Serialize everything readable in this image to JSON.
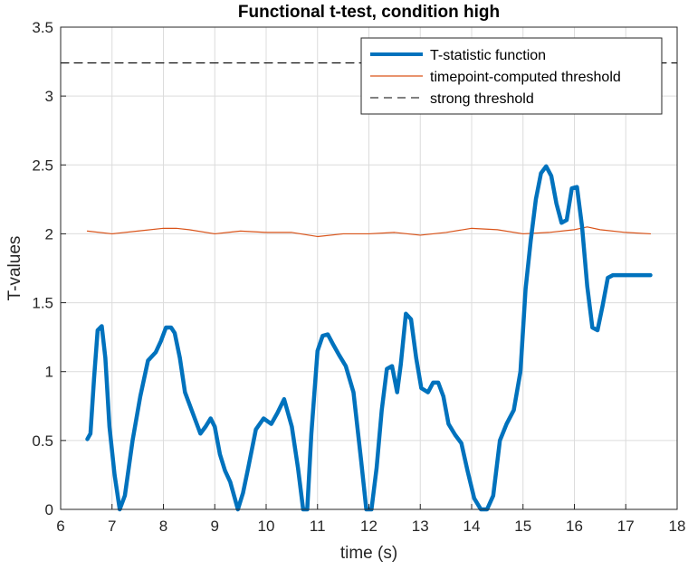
{
  "chart_data": {
    "type": "line",
    "title": "Functional t-test, condition high",
    "xlabel": "time (s)",
    "ylabel": "T-values",
    "xlim": [
      6,
      18
    ],
    "ylim": [
      0,
      3.5
    ],
    "xticks": [
      6,
      7,
      8,
      9,
      10,
      11,
      12,
      13,
      14,
      15,
      16,
      17,
      18
    ],
    "yticks": [
      0,
      0.5,
      1,
      1.5,
      2,
      2.5,
      3,
      3.5
    ],
    "xtick_labels": [
      "6",
      "7",
      "8",
      "9",
      "10",
      "11",
      "12",
      "13",
      "14",
      "15",
      "16",
      "17",
      "18"
    ],
    "ytick_labels": [
      "0",
      "0.5",
      "1",
      "1.5",
      "2",
      "2.5",
      "3",
      "3.5"
    ],
    "grid": true,
    "legend_position": "top-right",
    "series": [
      {
        "name": "T-statistic function",
        "color": "#0072BD",
        "style": "solid-thick",
        "x": [
          6.52,
          6.58,
          6.65,
          6.72,
          6.8,
          6.87,
          6.95,
          7.05,
          7.15,
          7.25,
          7.4,
          7.55,
          7.7,
          7.85,
          7.95,
          8.05,
          8.15,
          8.22,
          8.32,
          8.42,
          8.52,
          8.62,
          8.72,
          8.82,
          8.92,
          9.0,
          9.1,
          9.2,
          9.3,
          9.45,
          9.55,
          9.65,
          9.8,
          9.95,
          10.1,
          10.22,
          10.35,
          10.5,
          10.62,
          10.72,
          10.8,
          10.88,
          10.95,
          11.0,
          11.1,
          11.2,
          11.3,
          11.42,
          11.55,
          11.7,
          11.85,
          11.95,
          12.05,
          12.15,
          12.25,
          12.35,
          12.45,
          12.55,
          12.62,
          12.72,
          12.82,
          12.92,
          13.02,
          13.15,
          13.25,
          13.35,
          13.45,
          13.55,
          13.68,
          13.8,
          13.92,
          14.05,
          14.18,
          14.3,
          14.42,
          14.55,
          14.68,
          14.82,
          14.95,
          15.05,
          15.15,
          15.25,
          15.35,
          15.45,
          15.55,
          15.65,
          15.75,
          15.85,
          15.95,
          16.05,
          16.15,
          16.25,
          16.35,
          16.45,
          16.55,
          16.65,
          16.75,
          16.85,
          16.95,
          17.05,
          17.15,
          17.25,
          17.35,
          17.48
        ],
        "y": [
          0.51,
          0.55,
          0.95,
          1.3,
          1.33,
          1.1,
          0.6,
          0.25,
          0.0,
          0.1,
          0.5,
          0.82,
          1.08,
          1.14,
          1.22,
          1.32,
          1.32,
          1.28,
          1.1,
          0.85,
          0.75,
          0.65,
          0.55,
          0.6,
          0.66,
          0.6,
          0.4,
          0.28,
          0.2,
          0.0,
          0.12,
          0.3,
          0.58,
          0.66,
          0.62,
          0.7,
          0.8,
          0.6,
          0.3,
          0.0,
          0.0,
          0.55,
          0.9,
          1.15,
          1.26,
          1.27,
          1.2,
          1.12,
          1.04,
          0.85,
          0.35,
          0.0,
          0.0,
          0.3,
          0.72,
          1.02,
          1.04,
          0.85,
          1.05,
          1.42,
          1.38,
          1.1,
          0.88,
          0.85,
          0.92,
          0.92,
          0.82,
          0.62,
          0.54,
          0.48,
          0.28,
          0.08,
          0.0,
          0.0,
          0.1,
          0.5,
          0.62,
          0.72,
          1.0,
          1.6,
          1.95,
          2.25,
          2.44,
          2.49,
          2.42,
          2.22,
          2.08,
          2.1,
          2.33,
          2.34,
          2.05,
          1.62,
          1.32,
          1.3,
          1.48,
          1.68,
          1.7,
          1.7,
          1.7,
          1.7,
          1.7,
          1.7,
          1.7,
          1.7
        ]
      },
      {
        "name": "timepoint-computed threshold",
        "color": "#D95319",
        "style": "solid-thin",
        "x": [
          6.52,
          7.0,
          7.5,
          8.0,
          8.25,
          8.5,
          9.0,
          9.5,
          10.0,
          10.5,
          11.0,
          11.5,
          12.0,
          12.5,
          13.0,
          13.5,
          14.0,
          14.5,
          15.0,
          15.5,
          16.0,
          16.25,
          16.5,
          17.0,
          17.48
        ],
        "y": [
          2.02,
          2.0,
          2.02,
          2.04,
          2.04,
          2.03,
          2.0,
          2.02,
          2.01,
          2.01,
          1.98,
          2.0,
          2.0,
          2.01,
          1.99,
          2.01,
          2.04,
          2.03,
          2.0,
          2.01,
          2.03,
          2.05,
          2.03,
          2.01,
          2.0
        ]
      },
      {
        "name": "strong threshold",
        "color": "#000000",
        "style": "dashed",
        "x": [
          6,
          18
        ],
        "y": [
          3.24,
          3.24
        ]
      }
    ]
  }
}
